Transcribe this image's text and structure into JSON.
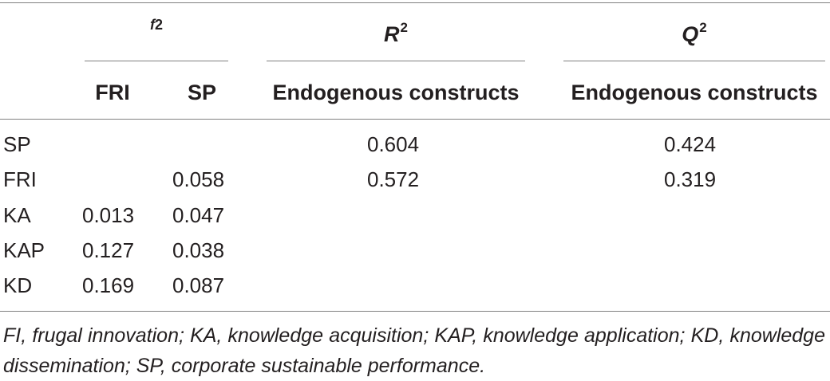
{
  "table": {
    "header": {
      "f2": "f",
      "f2_suffix": "2",
      "r2": "R",
      "r2_sup": "2",
      "q2": "Q",
      "q2_sup": "2",
      "fri": "FRI",
      "sp": "SP",
      "r2_sub": "Endogenous constructs",
      "q2_sub": "Endogenous constructs"
    },
    "rows": [
      {
        "label": "SP",
        "fri": "",
        "sp": "",
        "r2": "0.604",
        "q2": "0.424"
      },
      {
        "label": "FRI",
        "fri": "",
        "sp": "0.058",
        "r2": "0.572",
        "q2": "0.319"
      },
      {
        "label": "KA",
        "fri": "0.013",
        "sp": "0.047",
        "r2": "",
        "q2": ""
      },
      {
        "label": "KAP",
        "fri": "0.127",
        "sp": "0.038",
        "r2": "",
        "q2": ""
      },
      {
        "label": "KD",
        "fri": "0.169",
        "sp": "0.087",
        "r2": "",
        "q2": ""
      }
    ],
    "footnote": "FI, frugal innovation; KA, knowledge acquisition; KAP, knowledge application; KD, knowledge dissemination; SP, corporate sustainable performance."
  }
}
